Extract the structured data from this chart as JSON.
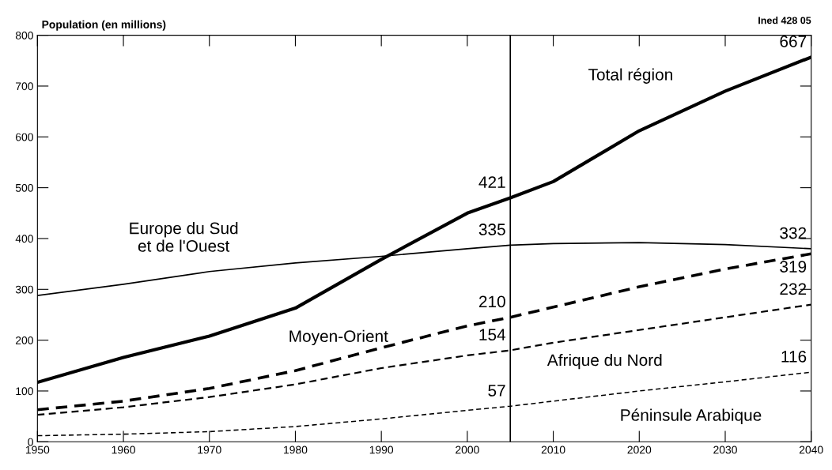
{
  "chart_data": {
    "type": "line",
    "ylabel": "Population (en millions)",
    "x": [
      1950,
      1960,
      1970,
      1980,
      1990,
      2000,
      2005,
      2010,
      2020,
      2030,
      2040
    ],
    "series": [
      {
        "name": "Total région",
        "color": "#000000",
        "line_style": "solid",
        "values": [
          117,
          166,
          208,
          263,
          359,
          450,
          480,
          512,
          612,
          690,
          757
        ]
      },
      {
        "name": "Europe du Sud\net de l'Ouest",
        "color": "#000000",
        "line_style": "solid",
        "values": [
          288,
          310,
          335,
          352,
          365,
          380,
          387,
          390,
          392,
          388,
          380
        ]
      },
      {
        "name": "Moyen-Orient",
        "color": "#000000",
        "line_style": "dashed",
        "values": [
          63,
          80,
          105,
          140,
          185,
          228,
          245,
          265,
          305,
          340,
          370
        ]
      },
      {
        "name": "Afrique du Nord",
        "color": "#000000",
        "line_style": "dashed",
        "values": [
          53,
          68,
          88,
          113,
          145,
          170,
          180,
          195,
          220,
          245,
          270
        ]
      },
      {
        "name": "Péninsule Arabique",
        "color": "#000000",
        "line_style": "dashed",
        "values": [
          12,
          15,
          20,
          30,
          45,
          62,
          70,
          80,
          100,
          118,
          137
        ]
      }
    ],
    "xlim": [
      1950,
      2040
    ],
    "xticks": [
      1950,
      1960,
      1970,
      1980,
      1990,
      2000,
      2010,
      2020,
      2030,
      2040
    ],
    "ylim": [
      0,
      800
    ],
    "yticks": [
      0,
      100,
      200,
      300,
      400,
      500,
      600,
      700,
      800
    ],
    "grid": false,
    "legend": false,
    "marker": "none",
    "ref_lines": [
      {
        "axis": "x",
        "value": 2005,
        "color": "#000000"
      }
    ],
    "annotations": [
      "421",
      "667",
      "335",
      "332",
      "210",
      "319",
      "154",
      "232",
      "57",
      "116",
      "Ined 428 05"
    ]
  }
}
